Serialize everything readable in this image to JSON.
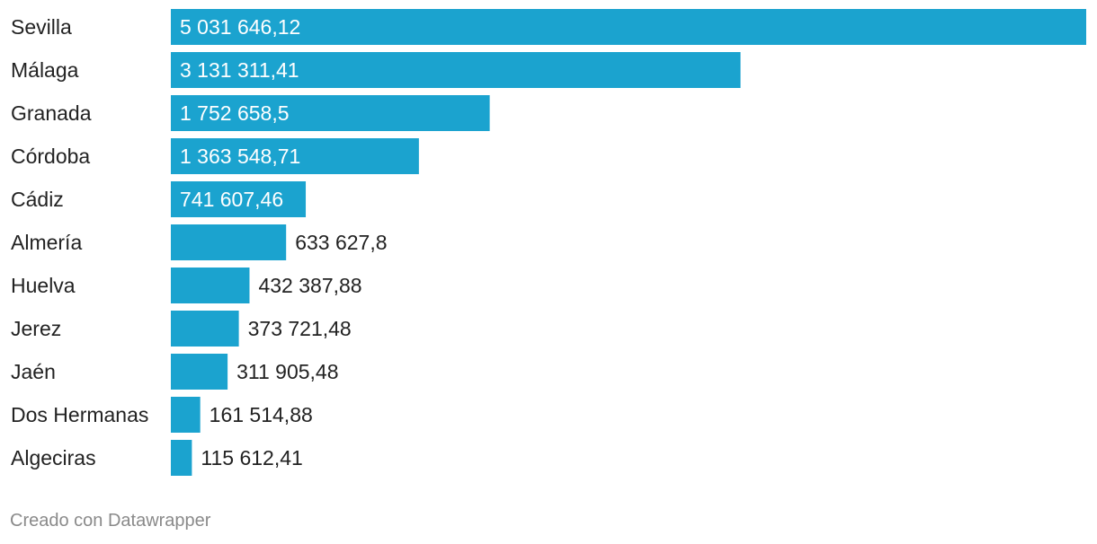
{
  "chart_data": {
    "type": "bar",
    "orientation": "horizontal",
    "categories": [
      "Sevilla",
      "Málaga",
      "Granada",
      "Córdoba",
      "Cádiz",
      "Almería",
      "Huelva",
      "Jerez",
      "Jaén",
      "Dos Hermanas",
      "Algeciras"
    ],
    "values": [
      5031646.12,
      3131311.41,
      1752658.5,
      1363548.71,
      741607.46,
      633627.8,
      432387.88,
      373721.48,
      311905.48,
      161514.88,
      115612.41
    ],
    "value_labels": [
      "5 031 646,12",
      "3 131 311,41",
      "1 752 658,5",
      "1 363 548,71",
      "741 607,46",
      "633 627,8",
      "432 387,88",
      "373 721,48",
      "311 905,48",
      "161 514,88",
      "115 612,41"
    ],
    "xlim": [
      0,
      5031646.12
    ],
    "bar_color": "#1ba3cf"
  },
  "footer": {
    "credit": "Creado con Datawrapper"
  }
}
